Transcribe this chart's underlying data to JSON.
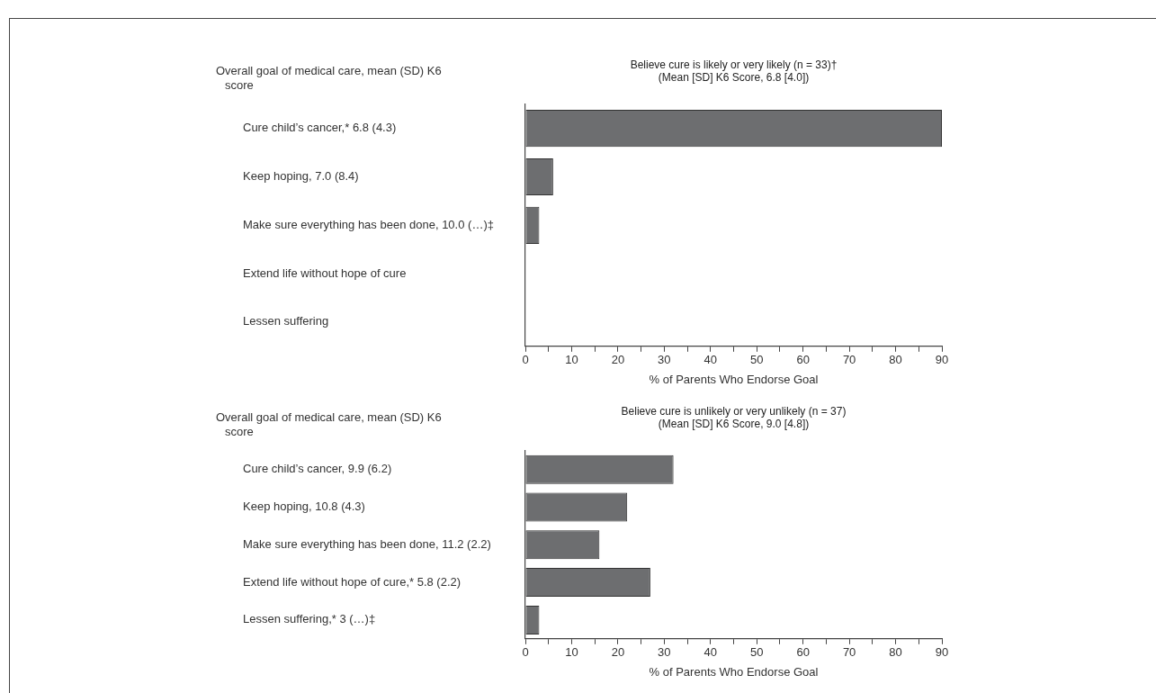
{
  "chart_data": [
    {
      "type": "bar",
      "orientation": "horizontal",
      "title": "Believe cure is likely or very likely (n = 33)†",
      "subtitle": "(Mean [SD] K6 Score, 6.8 [4.0])",
      "ylabel": "Overall goal of medical care, mean (SD) K6 score",
      "xlabel": "% of Parents Who Endorse Goal",
      "categories": [
        "Cure child’s cancer,* 6.8 (4.3)",
        "Keep hoping, 7.0 (8.4)",
        "Make sure everything has been done, 10.0 (…)‡",
        "Extend life without hope of cure",
        "Lessen suffering"
      ],
      "values": [
        90,
        6,
        3,
        0,
        0
      ],
      "color": "#6d6e70",
      "xlim": [
        0,
        90
      ],
      "xticks": [
        0,
        {
          "value": 5,
          "label": null
        },
        10,
        {
          "value": 15,
          "label": null
        },
        20,
        {
          "value": 25,
          "label": null
        },
        30,
        {
          "value": 35,
          "label": null
        },
        40,
        {
          "value": 45,
          "label": null
        },
        50,
        {
          "value": 55,
          "label": null
        },
        60,
        {
          "value": 65,
          "label": null
        },
        70,
        {
          "value": 75,
          "label": null
        },
        80,
        {
          "value": 85,
          "label": null
        },
        90
      ]
    },
    {
      "type": "bar",
      "orientation": "horizontal",
      "title": "Believe cure is unlikely or very unlikely (n = 37)",
      "subtitle": "(Mean [SD] K6 Score, 9.0 [4.8])",
      "ylabel": "Overall goal of medical care, mean (SD) K6 score",
      "xlabel": "% of Parents Who Endorse Goal",
      "categories": [
        "Cure child’s cancer, 9.9 (6.2)",
        "Keep hoping, 10.8 (4.3)",
        "Make sure everything has been done, 11.2 (2.2)",
        "Extend life without hope of cure,* 5.8 (2.2)",
        "Lessen suffering,* 3 (…)‡"
      ],
      "values": [
        32,
        22,
        16,
        27,
        3
      ],
      "color": "#6d6e70",
      "xlim": [
        0,
        90
      ],
      "xticks": [
        0,
        {
          "value": 5,
          "label": null
        },
        10,
        {
          "value": 15,
          "label": null
        },
        20,
        {
          "value": 25,
          "label": null
        },
        30,
        {
          "value": 35,
          "label": null
        },
        40,
        {
          "value": 45,
          "label": null
        },
        50,
        {
          "value": 55,
          "label": null
        },
        60,
        {
          "value": 65,
          "label": null
        },
        70,
        {
          "value": 75,
          "label": null
        },
        80,
        {
          "value": 85,
          "label": null
        },
        90
      ]
    }
  ]
}
